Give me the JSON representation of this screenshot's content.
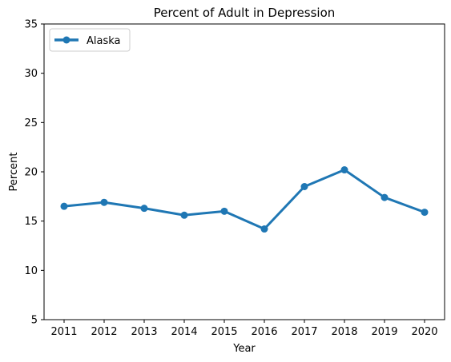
{
  "chart_data": {
    "type": "line",
    "title": "Percent of Adult in Depression",
    "xlabel": "Year",
    "ylabel": "Percent",
    "x": [
      "2011",
      "2012",
      "2013",
      "2014",
      "2015",
      "2016",
      "2017",
      "2018",
      "2019",
      "2020"
    ],
    "ylim": [
      5,
      35
    ],
    "yticks": [
      5,
      10,
      15,
      20,
      25,
      30,
      35
    ],
    "grid": false,
    "legend_position": "top-left",
    "series": [
      {
        "name": "Alaska",
        "color": "#1f77b4",
        "marker": "circle",
        "values": [
          16.5,
          16.9,
          16.3,
          15.6,
          16.0,
          14.2,
          18.5,
          20.2,
          17.4,
          15.9
        ]
      }
    ]
  }
}
